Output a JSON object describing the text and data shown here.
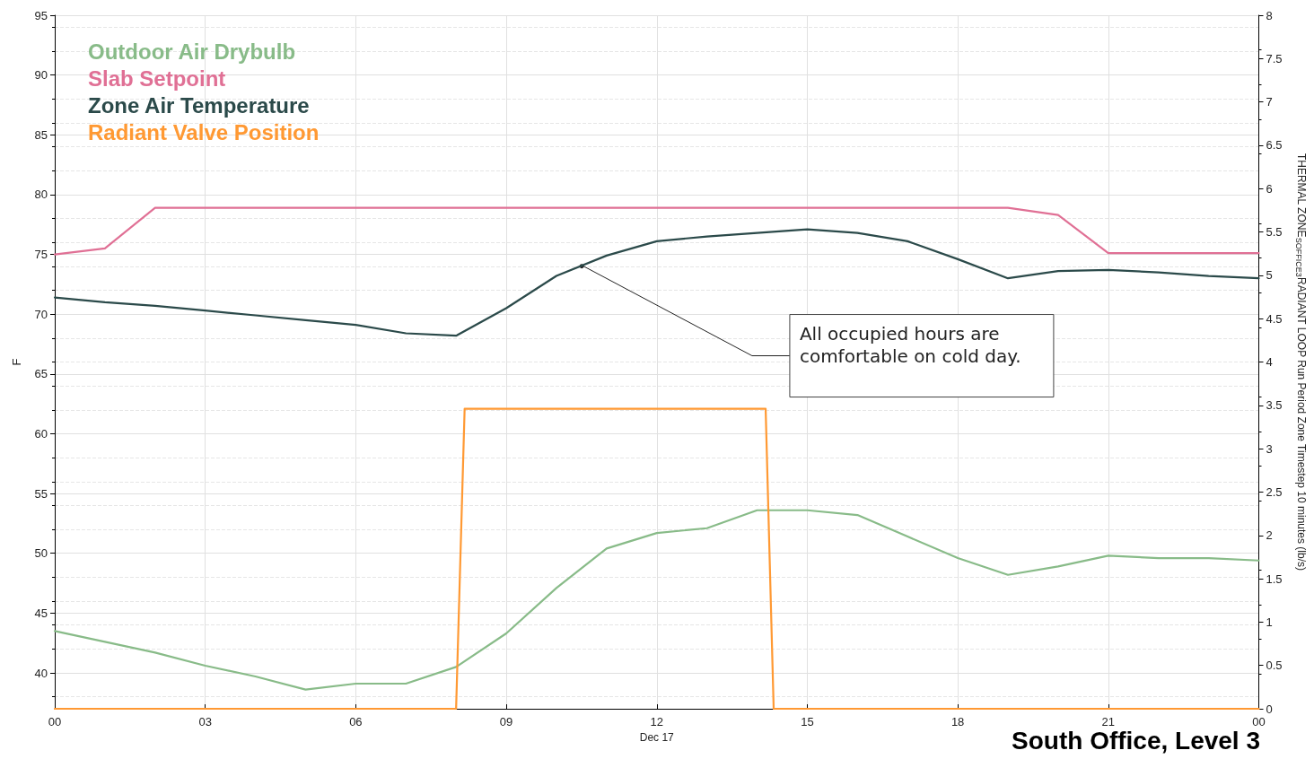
{
  "chart_data": {
    "type": "line",
    "title": "South Office, Level 3",
    "xlabel": "Dec 17",
    "ylabel": "F",
    "y2label": "THERMAL ZONE$_{SOFFICE3}$RADIANT LOOP Run Period Zone Timestep 10 minutes (lb/s)",
    "xlim": [
      0,
      24
    ],
    "xticks": [
      {
        "value": 0,
        "label": "00"
      },
      {
        "value": 3,
        "label": "03"
      },
      {
        "value": 6,
        "label": "06"
      },
      {
        "value": 9,
        "label": "09"
      },
      {
        "value": 12,
        "label": "12"
      },
      {
        "value": 15,
        "label": "15"
      },
      {
        "value": 18,
        "label": "18"
      },
      {
        "value": 21,
        "label": "21"
      },
      {
        "value": 24,
        "label": "00"
      }
    ],
    "ylim": [
      37,
      95
    ],
    "yticks": [
      40,
      45,
      50,
      55,
      60,
      65,
      70,
      75,
      80,
      85,
      90,
      95
    ],
    "y2lim": [
      0,
      8
    ],
    "y2ticks": [
      0,
      0.5,
      1,
      1.5,
      2,
      2.5,
      3,
      3.5,
      4,
      4.5,
      5,
      5.5,
      6,
      6.5,
      7,
      7.5,
      8
    ],
    "grid": true,
    "legend": "top left",
    "marker": "none",
    "line_style": "solid",
    "series": [
      {
        "name": "Outdoor Air Drybulb",
        "color": "#88bb88",
        "x": [
          0,
          1,
          2,
          3,
          4,
          5,
          6,
          7,
          8,
          9,
          10,
          11,
          12,
          13,
          14,
          15,
          16,
          17,
          18,
          19,
          20,
          21,
          22,
          23,
          24
        ],
        "values": [
          43.5,
          42.6,
          41.7,
          40.6,
          39.7,
          38.6,
          39.1,
          39.1,
          40.5,
          43.3,
          47.1,
          50.4,
          51.7,
          52.1,
          53.6,
          53.6,
          53.2,
          51.4,
          49.6,
          48.2,
          48.9,
          49.8,
          49.6,
          49.6,
          49.4
        ]
      },
      {
        "name": "Slab Setpoint",
        "color": "#e07095",
        "x": [
          0,
          1,
          2,
          19,
          20,
          21,
          24
        ],
        "values": [
          75.0,
          75.5,
          78.9,
          78.9,
          78.3,
          75.1,
          75.1
        ]
      },
      {
        "name": "Zone Air Temperature",
        "color": "#2b4a4a",
        "x": [
          0,
          1,
          2,
          3,
          4,
          5,
          6,
          7,
          8,
          9,
          10,
          11,
          12,
          13,
          14,
          15,
          16,
          17,
          18,
          19,
          20,
          21,
          22,
          23,
          24
        ],
        "values": [
          71.4,
          71.0,
          70.7,
          70.3,
          69.9,
          69.5,
          69.1,
          68.4,
          68.2,
          70.5,
          73.2,
          74.9,
          76.1,
          76.5,
          76.8,
          77.1,
          76.8,
          76.1,
          74.6,
          73.0,
          73.6,
          73.7,
          73.5,
          73.2,
          73.0
        ]
      },
      {
        "name": "Radiant Valve Position",
        "color": "#ff9933",
        "axis": "y2",
        "x": [
          0,
          8,
          8.17,
          14.17,
          14.33,
          24
        ],
        "values": [
          0,
          0,
          3.46,
          3.46,
          0,
          0
        ]
      }
    ],
    "annotations": [
      {
        "text": "All occupied hours are\ncomfortable on cold day.",
        "x": 10.5,
        "y": 74.1
      }
    ]
  }
}
